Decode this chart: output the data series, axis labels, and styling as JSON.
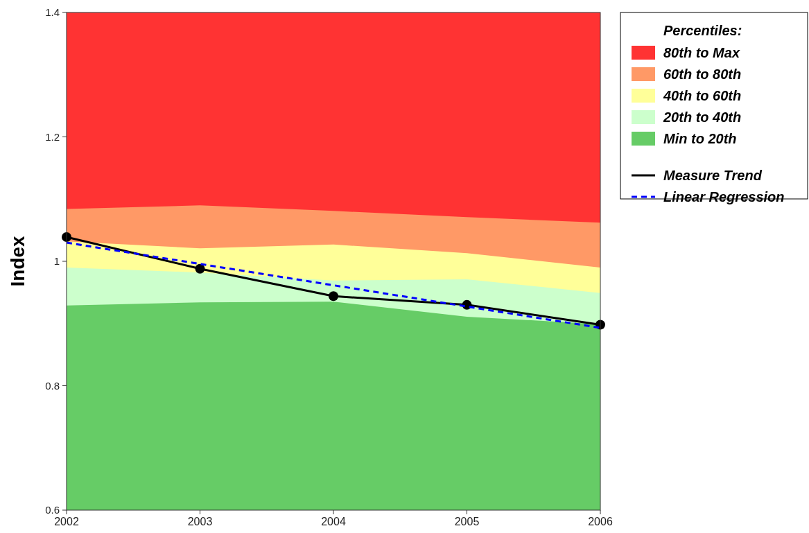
{
  "chart_data": {
    "type": "area",
    "ylabel": "Index",
    "legend_title": "Percentiles:",
    "legend": "right",
    "x": [
      2002,
      2003,
      2004,
      2005,
      2006
    ],
    "xlim": [
      2002,
      2006
    ],
    "xticks": [
      2002,
      2003,
      2004,
      2005,
      2006
    ],
    "ylim": [
      0.6,
      1.4
    ],
    "yticks": [
      0.6,
      0.8,
      1,
      1.2,
      1.4
    ],
    "grid": false,
    "series": [
      {
        "name": "80th to Max",
        "color": "#ff3333",
        "values": [
          1.4,
          1.4,
          1.4,
          1.4,
          1.4
        ]
      },
      {
        "name": "60th to 80th",
        "color": "#ff9966",
        "values": [
          1.084,
          1.09,
          1.081,
          1.071,
          1.062
        ]
      },
      {
        "name": "40th to 60th",
        "color": "#ffff99",
        "values": [
          1.032,
          1.021,
          1.027,
          1.013,
          0.99
        ]
      },
      {
        "name": "20th to 40th",
        "color": "#ccffcc",
        "values": [
          0.99,
          0.982,
          0.969,
          0.971,
          0.949
        ]
      },
      {
        "name": "Min to 20th",
        "color": "#66cc66",
        "values": [
          0.929,
          0.934,
          0.935,
          0.911,
          0.899
        ]
      },
      {
        "name": "Measure Trend",
        "type": "line",
        "color": "#000000",
        "marker": "circle",
        "line_style": "solid",
        "values": [
          1.039,
          0.988,
          0.944,
          0.93,
          0.898
        ]
      },
      {
        "name": "Linear Regression",
        "type": "line",
        "color": "#0000ff",
        "marker": "none",
        "line_style": "dashed",
        "x": [
          2002,
          2006
        ],
        "values": [
          1.03,
          0.893
        ]
      }
    ]
  }
}
